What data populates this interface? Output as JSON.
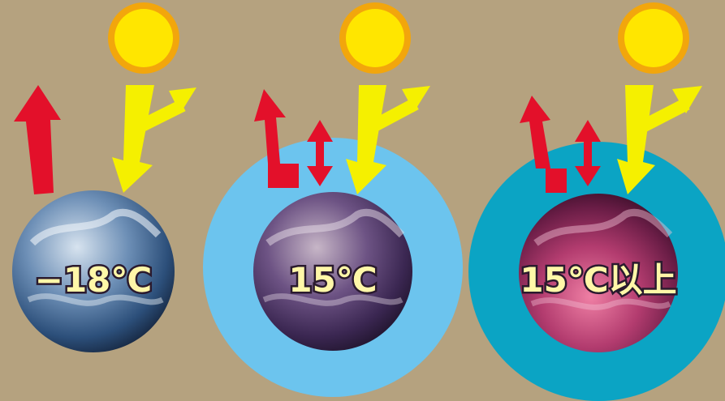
{
  "panels": [
    {
      "temperature": "−18℃"
    },
    {
      "temperature": "15℃"
    },
    {
      "temperature": "15℃以上"
    }
  ],
  "colors": {
    "background": "#b5a27f",
    "sun": "#ffe600",
    "sun_rays": "#f2a60c",
    "sunlight_arrow": "#f5f000",
    "heat_arrow": "#e3102a",
    "atmosphere_thin": "#6cc4ee",
    "atmosphere_thick": "#0ba4c4"
  }
}
